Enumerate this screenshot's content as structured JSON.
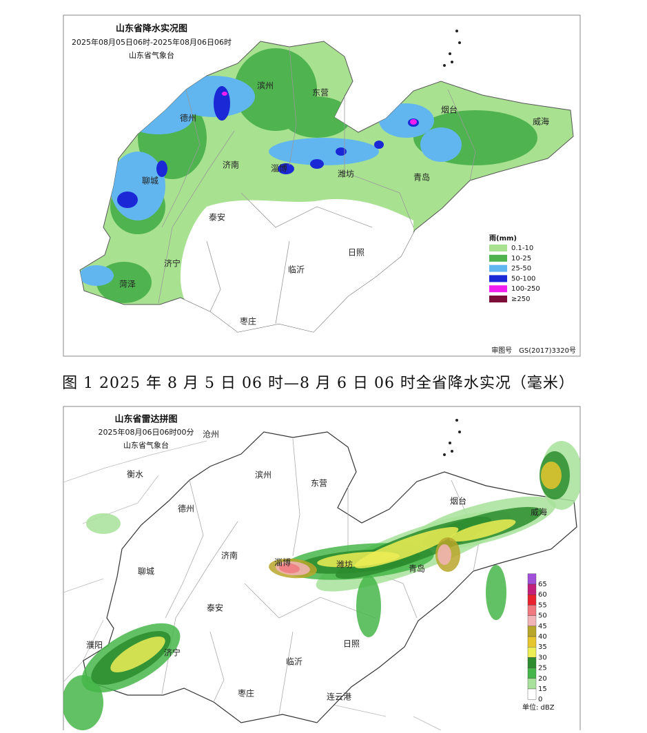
{
  "figure1": {
    "title": "山东省降水实况图",
    "subtitle": "2025年08月05日06时-2025年08月06日06时",
    "issuer": "山东省气象台",
    "cities": [
      "滨州",
      "东营",
      "烟台",
      "威海",
      "德州",
      "济南",
      "淄博",
      "潍坊",
      "青岛",
      "聊城",
      "泰安",
      "日照",
      "济宁",
      "临沂",
      "菏泽",
      "枣庄"
    ],
    "legend": {
      "title": "雨(mm)",
      "items": [
        {
          "label": "0.1-10",
          "color": "#a8e291"
        },
        {
          "label": "10-25",
          "color": "#4fb350"
        },
        {
          "label": "25-50",
          "color": "#62b6f0"
        },
        {
          "label": "50-100",
          "color": "#1b28d6"
        },
        {
          "label": "100-250",
          "color": "#f21ef0"
        },
        {
          "label": "≥250",
          "color": "#7d0e3a"
        }
      ]
    },
    "approval": "审图号　GS(2017)3320号"
  },
  "caption": "图 1 2025 年 8 月 5 日 06 时—8 月 6 日 06 时全省降水实况（毫米）",
  "figure2": {
    "title": "山东省雷达拼图",
    "subtitle": "2025年08月06日06时00分",
    "issuer": "山东省气象台",
    "cities": [
      "沧州",
      "衡水",
      "滨州",
      "东营",
      "德州",
      "烟台",
      "威海",
      "济南",
      "淄博",
      "潍坊",
      "青岛",
      "聊城",
      "泰安",
      "濮阳",
      "济宁",
      "日照",
      "临沂",
      "枣庄",
      "连云港"
    ],
    "colorbar": {
      "ticks": [
        65,
        60,
        55,
        50,
        45,
        40,
        35,
        30,
        25,
        20,
        15,
        0
      ],
      "colors": [
        "#a14fd8",
        "#c2207a",
        "#e8232e",
        "#f0797f",
        "#f3b4b8",
        "#b8a62a",
        "#e6c62e",
        "#eded55",
        "#2c8c2e",
        "#45b649",
        "#a8e29a",
        "#ffffff"
      ],
      "unit": "单位: dBZ"
    }
  }
}
